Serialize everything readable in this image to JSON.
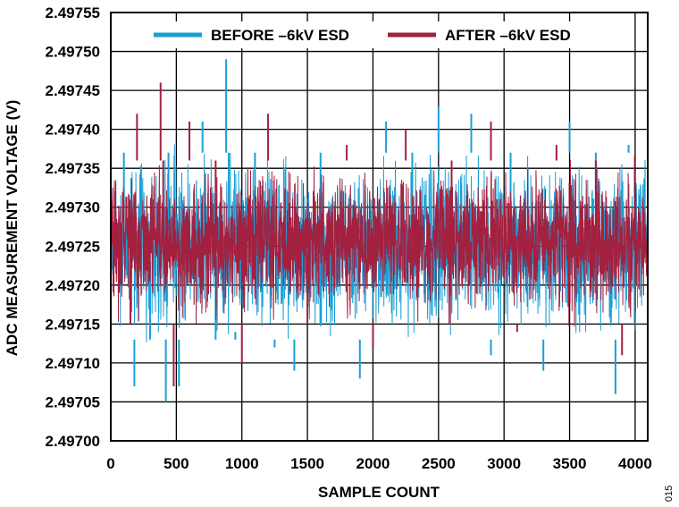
{
  "chart_data": {
    "type": "line",
    "title": "",
    "xlabel": "SAMPLE COUNT",
    "ylabel": "ADC MEASUREMENT VOLTAGE (V)",
    "xlim": [
      0,
      4096
    ],
    "ylim": [
      2.497,
      2.49755
    ],
    "x_ticks": [
      "0",
      "500",
      "1000",
      "1500",
      "2000",
      "2500",
      "3000",
      "3500",
      "4000"
    ],
    "y_ticks": [
      "2.49700",
      "2.49705",
      "2.49710",
      "2.49715",
      "2.49720",
      "2.49725",
      "2.49730",
      "2.49735",
      "2.49740",
      "2.49745",
      "2.49750",
      "2.49755"
    ],
    "grid": true,
    "legend_position": "top",
    "series": [
      {
        "name": "BEFORE –6kV ESD",
        "color": "#1a9fd6",
        "x": [
          0,
          100,
          180,
          300,
          420,
          440,
          520,
          600,
          700,
          800,
          880,
          900,
          950,
          1100,
          1250,
          1400,
          1600,
          1750,
          1900,
          2100,
          2300,
          2500,
          2750,
          2900,
          3050,
          3300,
          3500,
          3700,
          3850,
          3950,
          4096
        ],
        "values": [
          2.49725,
          2.49726,
          2.49707,
          2.49723,
          2.49705,
          2.49727,
          2.49707,
          2.49739,
          2.49741,
          2.49724,
          2.49749,
          2.49725,
          2.49714,
          2.49727,
          2.49712,
          2.49709,
          2.49725,
          2.49737,
          2.49708,
          2.49741,
          2.49726,
          2.49743,
          2.49742,
          2.49711,
          2.49727,
          2.49709,
          2.49741,
          2.49728,
          2.49706,
          2.49738,
          2.49721
        ],
        "range_top": 2.49737,
        "range_bottom": 2.49713
      },
      {
        "name": "AFTER –6kV ESD",
        "color": "#a3203f",
        "x": [
          0,
          150,
          200,
          380,
          400,
          480,
          600,
          800,
          1000,
          1200,
          1500,
          1800,
          2000,
          2250,
          2600,
          2900,
          3100,
          3400,
          3700,
          3900,
          4096
        ],
        "values": [
          2.49725,
          2.49722,
          2.49742,
          2.49746,
          2.49725,
          2.49707,
          2.49741,
          2.49728,
          2.4971,
          2.49742,
          2.49724,
          2.49738,
          2.49712,
          2.4974,
          2.49726,
          2.49741,
          2.49714,
          2.49738,
          2.49725,
          2.49711,
          2.49723
        ],
        "range_top": 2.49736,
        "range_bottom": 2.49715
      }
    ]
  },
  "figure_number": "015"
}
